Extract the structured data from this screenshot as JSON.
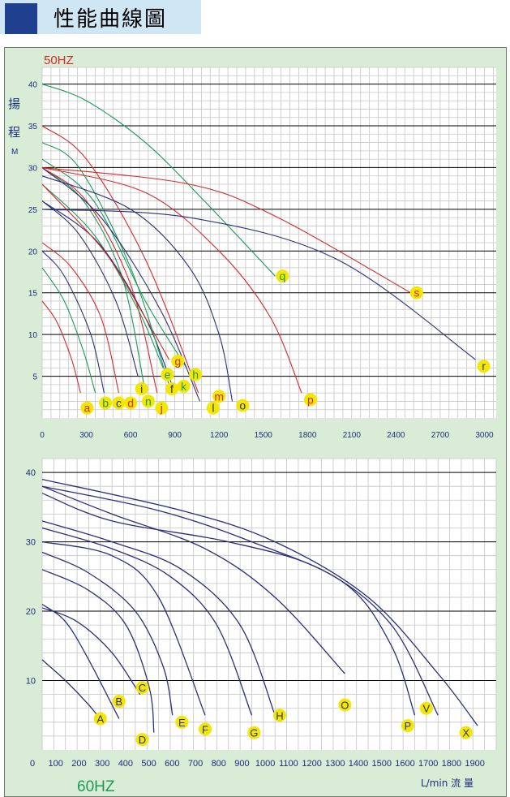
{
  "header": {
    "title": "性能曲線圖"
  },
  "chart_data": [
    {
      "type": "line",
      "label": "50HZ",
      "ylabel_chars": [
        "揚",
        "程"
      ],
      "yunit": "M",
      "xlim": [
        0,
        3080
      ],
      "ylim": [
        0,
        42
      ],
      "xticks": [
        0,
        300,
        600,
        900,
        1200,
        1500,
        1800,
        2100,
        2400,
        2700,
        3000
      ],
      "yticks": [
        5,
        10,
        15,
        20,
        25,
        30,
        35,
        40
      ],
      "colors": {
        "red": "#d42a2a",
        "green": "#1b9a5a",
        "navy": "#2b2f7a"
      },
      "series": [
        {
          "name": "a",
          "color": "red",
          "points": [
            [
              0,
              14
            ],
            [
              100,
              11.5
            ],
            [
              200,
              7
            ],
            [
              260,
              3
            ]
          ]
        },
        {
          "name": "b",
          "color": "green",
          "points": [
            [
              0,
              18
            ],
            [
              150,
              14
            ],
            [
              280,
              8
            ],
            [
              360,
              3
            ]
          ]
        },
        {
          "name": "c",
          "color": "navy",
          "points": [
            [
              0,
              20
            ],
            [
              150,
              17
            ],
            [
              330,
              10
            ],
            [
              420,
              3
            ]
          ]
        },
        {
          "name": "d",
          "color": "red",
          "points": [
            [
              0,
              21
            ],
            [
              200,
              18
            ],
            [
              400,
              12
            ],
            [
              520,
              3
            ]
          ]
        },
        {
          "name": "i",
          "color": "navy",
          "points": [
            [
              0,
              26
            ],
            [
              250,
              22
            ],
            [
              500,
              14
            ],
            [
              650,
              5
            ]
          ]
        },
        {
          "name": "n",
          "color": "green",
          "points": [
            [
              0,
              30
            ],
            [
              280,
              26
            ],
            [
              540,
              17
            ],
            [
              700,
              3
            ]
          ]
        },
        {
          "name": "j",
          "color": "red",
          "points": [
            [
              0,
              30
            ],
            [
              300,
              26
            ],
            [
              600,
              16
            ],
            [
              780,
              3
            ]
          ]
        },
        {
          "name": "e",
          "color": "green",
          "points": [
            [
              0,
              28
            ],
            [
              350,
              22
            ],
            [
              650,
              13
            ],
            [
              820,
              6
            ]
          ]
        },
        {
          "name": "f",
          "color": "navy",
          "points": [
            [
              0,
              26
            ],
            [
              380,
              21
            ],
            [
              700,
              12
            ],
            [
              880,
              4
            ]
          ]
        },
        {
          "name": "g",
          "color": "red",
          "points": [
            [
              0,
              28
            ],
            [
              420,
              20
            ],
            [
              700,
              12
            ],
            [
              860,
              7
            ]
          ]
        },
        {
          "name": "k",
          "color": "green",
          "points": [
            [
              0,
              33
            ],
            [
              250,
              30
            ],
            [
              600,
              18
            ],
            [
              860,
              4
            ]
          ]
        },
        {
          "name": "h",
          "color": "green",
          "points": [
            [
              0,
              31
            ],
            [
              350,
              26
            ],
            [
              700,
              14
            ],
            [
              980,
              6
            ]
          ]
        },
        {
          "name": "l",
          "color": "navy",
          "points": [
            [
              0,
              30
            ],
            [
              400,
              24
            ],
            [
              800,
              13
            ],
            [
              1070,
              2
            ]
          ]
        },
        {
          "name": "m",
          "color": "red",
          "points": [
            [
              0,
              35
            ],
            [
              300,
              31
            ],
            [
              700,
              19
            ],
            [
              1060,
              3
            ]
          ]
        },
        {
          "name": "o",
          "color": "navy",
          "points": [
            [
              0,
              29
            ],
            [
              600,
              25
            ],
            [
              1000,
              18
            ],
            [
              1200,
              10
            ],
            [
              1290,
              2
            ]
          ]
        },
        {
          "name": "p",
          "color": "red",
          "points": [
            [
              0,
              30
            ],
            [
              700,
              27
            ],
            [
              1200,
              20
            ],
            [
              1550,
              12
            ],
            [
              1760,
              3
            ]
          ]
        },
        {
          "name": "q",
          "color": "green",
          "points": [
            [
              0,
              40
            ],
            [
              300,
              38
            ],
            [
              700,
              33
            ],
            [
              1100,
              26
            ],
            [
              1580,
              17
            ]
          ]
        },
        {
          "name": "s",
          "color": "red",
          "points": [
            [
              0,
              30
            ],
            [
              1000,
              28
            ],
            [
              1600,
              24
            ],
            [
              2500,
              15
            ]
          ]
        },
        {
          "name": "r",
          "color": "navy",
          "points": [
            [
              0,
              25
            ],
            [
              1000,
              24
            ],
            [
              2000,
              19
            ],
            [
              2940,
              7
            ]
          ]
        }
      ],
      "labels": [
        {
          "text": "a",
          "x": 305,
          "y": 1.2,
          "color": "red"
        },
        {
          "text": "b",
          "x": 430,
          "y": 1.8,
          "color": "green"
        },
        {
          "text": "c",
          "x": 520,
          "y": 1.8,
          "color": "navy"
        },
        {
          "text": "d",
          "x": 600,
          "y": 1.8,
          "color": "red"
        },
        {
          "text": "i",
          "x": 675,
          "y": 3.5,
          "color": "navy"
        },
        {
          "text": "n",
          "x": 720,
          "y": 2.0,
          "color": "green"
        },
        {
          "text": "j",
          "x": 810,
          "y": 1.2,
          "color": "red"
        },
        {
          "text": "e",
          "x": 850,
          "y": 5.2,
          "color": "green"
        },
        {
          "text": "g",
          "x": 920,
          "y": 6.8,
          "color": "red"
        },
        {
          "text": "f",
          "x": 880,
          "y": 3.5,
          "color": "navy"
        },
        {
          "text": "k",
          "x": 960,
          "y": 3.8,
          "color": "green"
        },
        {
          "text": "h",
          "x": 1040,
          "y": 5.2,
          "color": "green"
        },
        {
          "text": "l",
          "x": 1160,
          "y": 1.2,
          "color": "navy"
        },
        {
          "text": "m",
          "x": 1200,
          "y": 2.6,
          "color": "red"
        },
        {
          "text": "o",
          "x": 1360,
          "y": 1.5,
          "color": "navy"
        },
        {
          "text": "p",
          "x": 1820,
          "y": 2.2,
          "color": "red"
        },
        {
          "text": "q",
          "x": 1630,
          "y": 17,
          "color": "green"
        },
        {
          "text": "s",
          "x": 2540,
          "y": 15,
          "color": "red"
        },
        {
          "text": "r",
          "x": 2995,
          "y": 6.2,
          "color": "navy"
        }
      ]
    },
    {
      "type": "line",
      "label": "60HZ",
      "xlabel": "L/min 流 量",
      "xlim": [
        0,
        1950
      ],
      "ylim": [
        0,
        42
      ],
      "xticks": [
        0,
        100,
        200,
        300,
        400,
        500,
        600,
        700,
        800,
        900,
        1000,
        1100,
        1200,
        1300,
        1400,
        1500,
        1600,
        1700,
        1800,
        1900
      ],
      "yticks": [
        10,
        20,
        30,
        40
      ],
      "series": [
        {
          "name": "A",
          "points": [
            [
              0,
              13
            ],
            [
              100,
              10
            ],
            [
              200,
              6.5
            ],
            [
              260,
              4
            ]
          ]
        },
        {
          "name": "B",
          "points": [
            [
              0,
              21
            ],
            [
              100,
              18.5
            ],
            [
              200,
              13
            ],
            [
              330,
              4.5
            ]
          ]
        },
        {
          "name": "C",
          "points": [
            [
              0,
              20.5
            ],
            [
              150,
              18.5
            ],
            [
              300,
              14
            ],
            [
              420,
              8
            ]
          ]
        },
        {
          "name": "D",
          "points": [
            [
              0,
              26
            ],
            [
              200,
              23
            ],
            [
              360,
              18
            ],
            [
              460,
              9
            ],
            [
              480,
              2.5
            ]
          ]
        },
        {
          "name": "E",
          "points": [
            [
              0,
              28.5
            ],
            [
              200,
              25.5
            ],
            [
              400,
              20
            ],
            [
              520,
              12
            ],
            [
              560,
              5
            ]
          ]
        },
        {
          "name": "F",
          "points": [
            [
              0,
              30
            ],
            [
              300,
              28
            ],
            [
              500,
              22
            ],
            [
              700,
              5
            ]
          ]
        },
        {
          "name": "G",
          "points": [
            [
              0,
              32
            ],
            [
              300,
              29
            ],
            [
              550,
              25
            ],
            [
              750,
              18
            ],
            [
              900,
              5
            ]
          ]
        },
        {
          "name": "H",
          "points": [
            [
              0,
              33
            ],
            [
              300,
              30
            ],
            [
              600,
              26
            ],
            [
              850,
              18
            ],
            [
              1000,
              5
            ]
          ]
        },
        {
          "name": "O",
          "points": [
            [
              0,
              38
            ],
            [
              300,
              34
            ],
            [
              700,
              29
            ],
            [
              1000,
              22
            ],
            [
              1300,
              11
            ]
          ]
        },
        {
          "name": "P",
          "points": [
            [
              0,
              38
            ],
            [
              500,
              34.5
            ],
            [
              900,
              30
            ],
            [
              1300,
              24
            ],
            [
              1500,
              15
            ],
            [
              1600,
              5
            ]
          ]
        },
        {
          "name": "V",
          "points": [
            [
              0,
              37
            ],
            [
              300,
              33
            ],
            [
              800,
              30
            ],
            [
              1200,
              26
            ],
            [
              1500,
              18
            ],
            [
              1700,
              5
            ]
          ]
        },
        {
          "name": "X",
          "points": [
            [
              0,
              39
            ],
            [
              600,
              34.5
            ],
            [
              1000,
              30
            ],
            [
              1400,
              22
            ],
            [
              1700,
              11
            ],
            [
              1870,
              3.5
            ]
          ]
        }
      ],
      "labels": [
        {
          "text": "A",
          "x": 250,
          "y": 4.5
        },
        {
          "text": "B",
          "x": 330,
          "y": 7
        },
        {
          "text": "C",
          "x": 430,
          "y": 9
        },
        {
          "text": "D",
          "x": 430,
          "y": 1.5
        },
        {
          "text": "E",
          "x": 600,
          "y": 4
        },
        {
          "text": "F",
          "x": 700,
          "y": 3
        },
        {
          "text": "G",
          "x": 910,
          "y": 2.5
        },
        {
          "text": "H",
          "x": 1020,
          "y": 5
        },
        {
          "text": "O",
          "x": 1300,
          "y": 6.5
        },
        {
          "text": "P",
          "x": 1570,
          "y": 3.5
        },
        {
          "text": "V",
          "x": 1650,
          "y": 6
        },
        {
          "text": "X",
          "x": 1820,
          "y": 2.5
        }
      ]
    }
  ],
  "colors": {
    "grid_major": "#000000",
    "grid_minor": "#c4c4c4",
    "axis_text": "#1f2d7a",
    "label_fill": "#f3e600",
    "hz50": "#d42a2a",
    "hz60": "#1b9a5a"
  }
}
